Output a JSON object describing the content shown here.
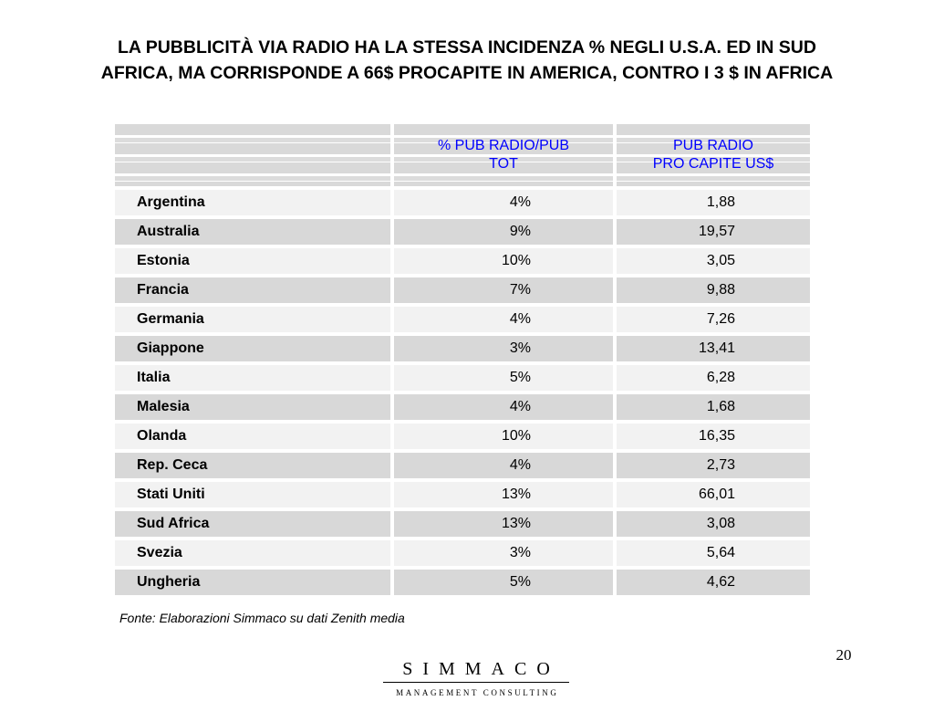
{
  "slide": {
    "title_line1": "LA PUBBLICITÀ VIA RADIO HA LA STESSA INCIDENZA % NEGLI U.S.A. ED IN SUD",
    "title_line2": "AFRICA, MA CORRISPONDE A 66$ PROCAPITE IN AMERICA, CONTRO I 3 $ IN AFRICA",
    "page_number": "20"
  },
  "table": {
    "headers": {
      "country": "",
      "pct_line1": "% PUB RADIO/PUB",
      "pct_line2": "TOT",
      "percap_line1": "PUB RADIO",
      "percap_line2": "PRO CAPITE US$"
    },
    "rows": [
      {
        "country": "Argentina",
        "pct": "4%",
        "per_capita": "1,88"
      },
      {
        "country": "Australia",
        "pct": "9%",
        "per_capita": "19,57"
      },
      {
        "country": "Estonia",
        "pct": "10%",
        "per_capita": "3,05"
      },
      {
        "country": "Francia",
        "pct": "7%",
        "per_capita": "9,88"
      },
      {
        "country": "Germania",
        "pct": "4%",
        "per_capita": "7,26"
      },
      {
        "country": "Giappone",
        "pct": "3%",
        "per_capita": "13,41"
      },
      {
        "country": "Italia",
        "pct": "5%",
        "per_capita": "6,28"
      },
      {
        "country": "Malesia",
        "pct": "4%",
        "per_capita": "1,68"
      },
      {
        "country": "Olanda",
        "pct": "10%",
        "per_capita": "16,35"
      },
      {
        "country": "Rep. Ceca",
        "pct": "4%",
        "per_capita": "2,73"
      },
      {
        "country": "Stati Uniti",
        "pct": "13%",
        "per_capita": "66,01"
      },
      {
        "country": "Sud Africa",
        "pct": "13%",
        "per_capita": "3,08"
      },
      {
        "country": "Svezia",
        "pct": "3%",
        "per_capita": "5,64"
      },
      {
        "country": "Ungheria",
        "pct": "5%",
        "per_capita": "4,62"
      }
    ]
  },
  "source_note": "Fonte: Elaborazioni Simmaco su dati Zenith media",
  "logo": {
    "name": "SIMMACO",
    "subtitle": "MANAGEMENT CONSULTING"
  },
  "colors": {
    "header_text": "#0000ff",
    "row_light": "#f2f2f2",
    "row_dark": "#d8d8d8"
  }
}
